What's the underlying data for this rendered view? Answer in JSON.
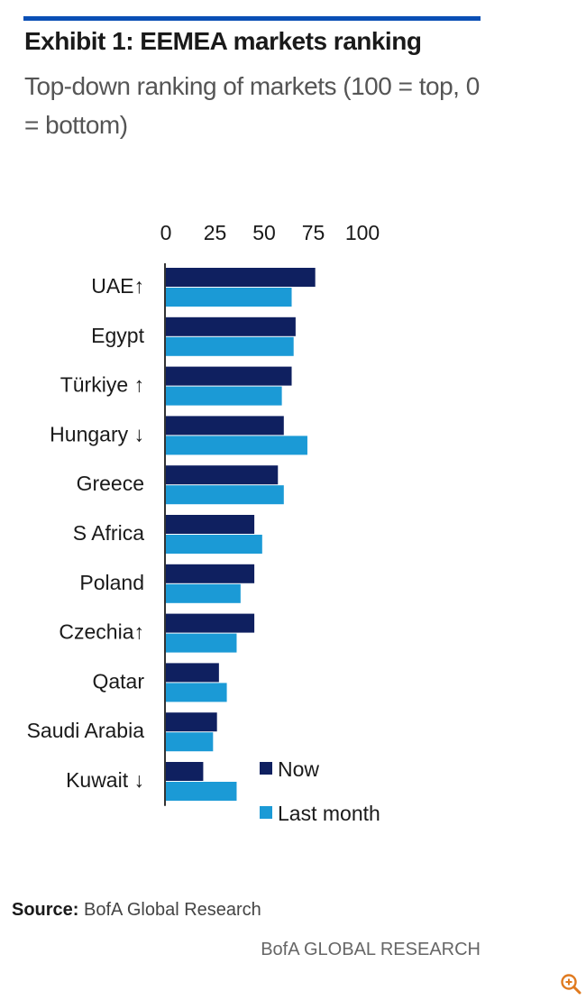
{
  "header": {
    "title": "Exhibit 1: EEMEA markets ranking",
    "subtitle": "Top-down ranking of markets (100 = top, 0 = bottom)"
  },
  "footer": {
    "source_label": "Source:",
    "source_text": "BofA Global Research",
    "brand": "BofA GLOBAL RESEARCH"
  },
  "icons": {
    "zoom": "zoom-in-icon"
  },
  "colors": {
    "now": "#0f2060",
    "last_month": "#1b9ad6",
    "top_rule": "#0a4fb5",
    "zoom_icon": "#e07a1f"
  },
  "chart_data": {
    "type": "bar",
    "orientation": "horizontal",
    "title": "Exhibit 1: EEMEA markets ranking",
    "subtitle": "Top-down ranking of markets (100 = top, 0 = bottom)",
    "categories": [
      "UAE↑",
      "Egypt",
      "Türkiye ↑",
      "Hungary ↓",
      "Greece",
      "S Africa",
      "Poland",
      "Czechia↑",
      "Qatar",
      "Saudi Arabia",
      "Kuwait ↓"
    ],
    "series": [
      {
        "name": "Now",
        "values": [
          76,
          66,
          64,
          60,
          57,
          45,
          45,
          45,
          27,
          26,
          19
        ]
      },
      {
        "name": "Last month",
        "values": [
          64,
          65,
          59,
          72,
          60,
          49,
          38,
          36,
          31,
          24,
          36
        ]
      }
    ],
    "xticks": [
      "0",
      "25",
      "50",
      "75",
      "100"
    ],
    "xlim": [
      0,
      100
    ],
    "axis_position": "top",
    "grid": false,
    "legend_position": "bottom-right"
  }
}
